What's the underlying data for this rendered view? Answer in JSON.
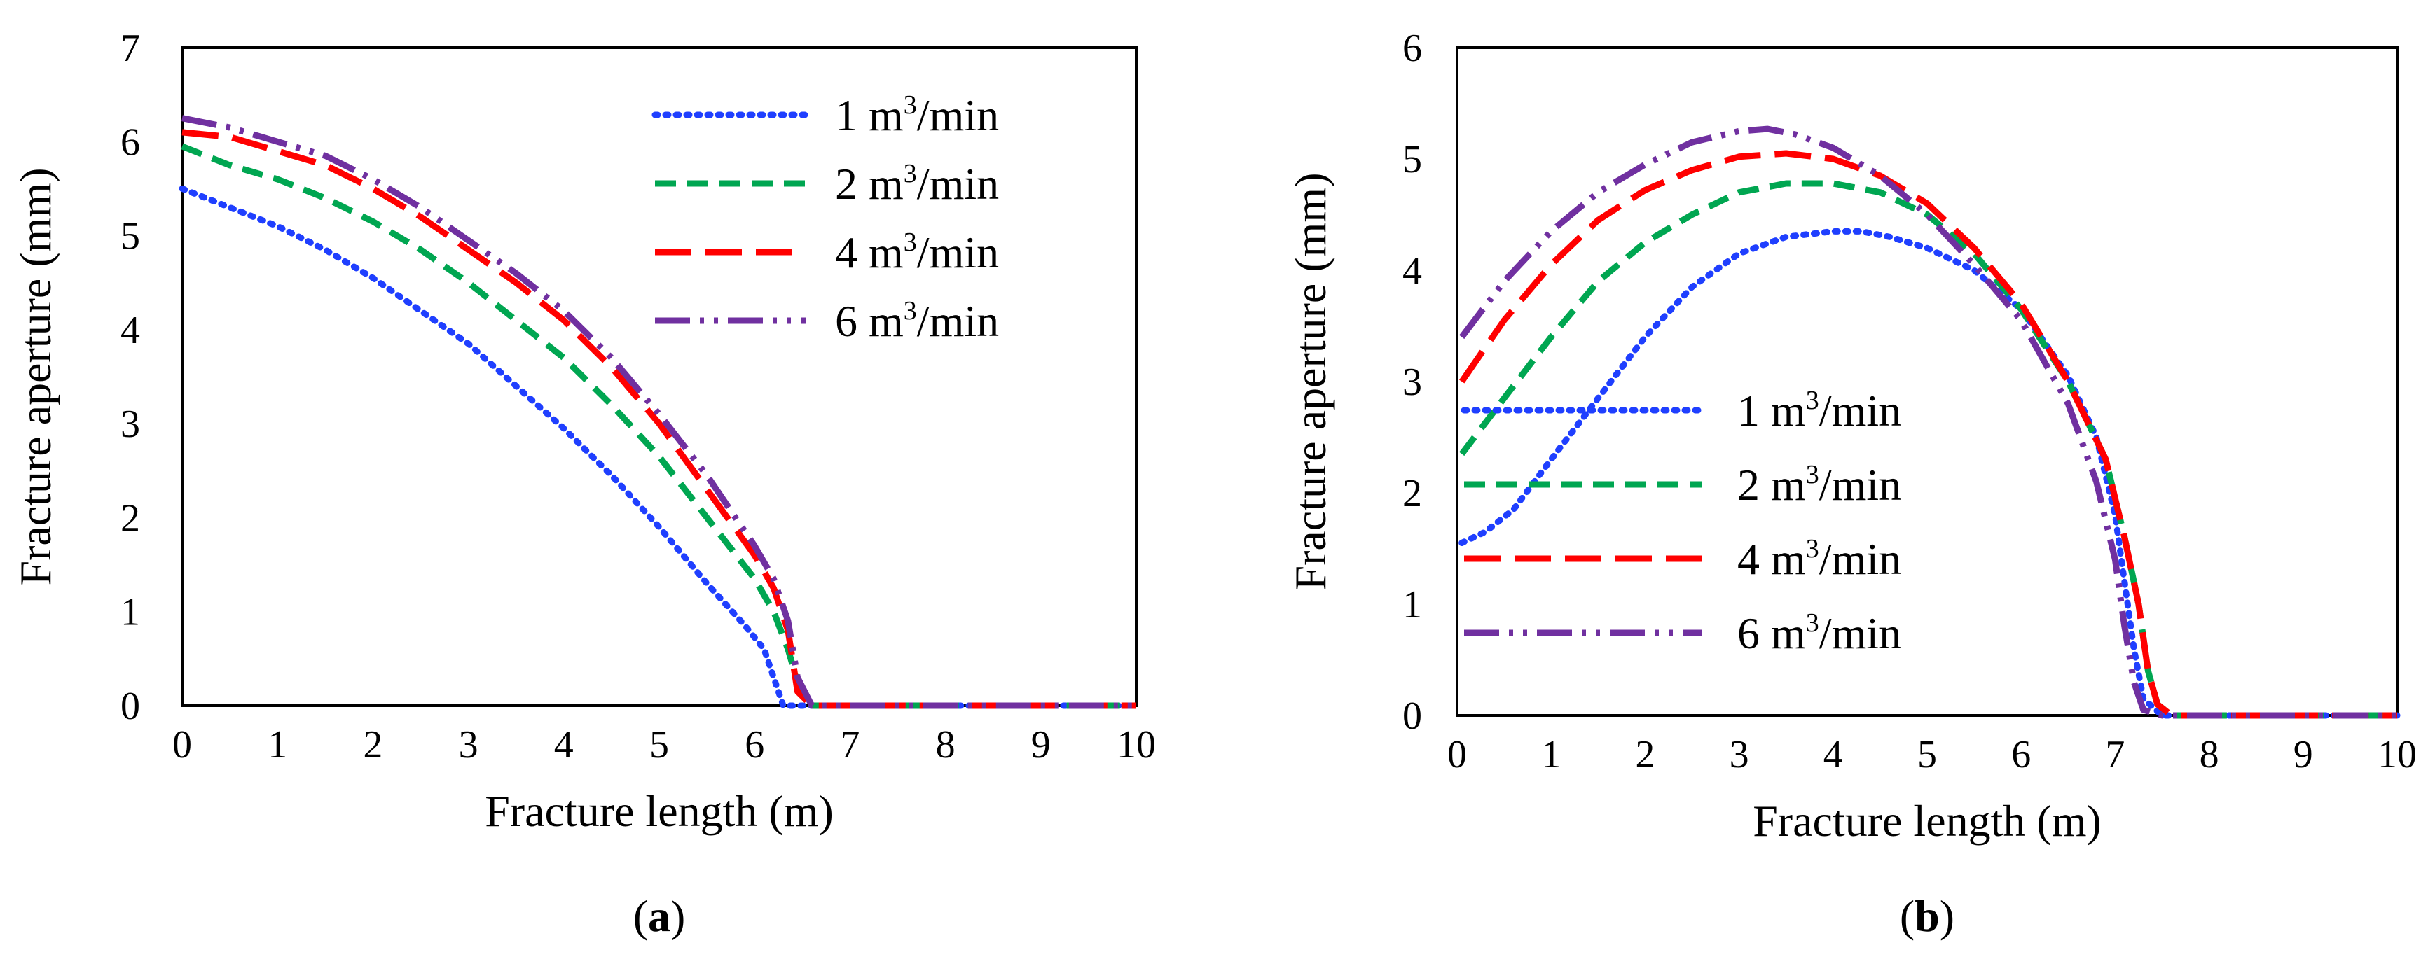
{
  "chart_data": [
    {
      "type": "line",
      "panel": "a",
      "caption_pre": "(",
      "caption_letter": "a",
      "caption_post": ")",
      "xlabel": "Fracture length (m)",
      "ylabel": "Fracture aperture (mm)",
      "xlim": [
        0,
        10
      ],
      "ylim": [
        0,
        7
      ],
      "xticks": [
        "0",
        "1",
        "2",
        "3",
        "4",
        "5",
        "6",
        "7",
        "8",
        "9",
        "10"
      ],
      "yticks": [
        "0",
        "1",
        "2",
        "3",
        "4",
        "5",
        "6",
        "7"
      ],
      "legend_position": "top-right",
      "series": [
        {
          "name": "1 m3/min",
          "label_pre": "1 m",
          "label_sup": "3",
          "label_post": "/min",
          "color": "#1f3fff",
          "dash": "dotted",
          "x": [
            0,
            0.5,
            1,
            1.5,
            2,
            2.5,
            3,
            3.5,
            4,
            4.5,
            5,
            5.5,
            5.9,
            6.1,
            6.2,
            6.3,
            6.5,
            7,
            8,
            9,
            10
          ],
          "y": [
            5.5,
            5.3,
            5.1,
            4.85,
            4.55,
            4.2,
            3.85,
            3.4,
            2.95,
            2.45,
            1.9,
            1.3,
            0.85,
            0.6,
            0.3,
            0.0,
            0.0,
            0.0,
            0.0,
            0.0,
            0.0
          ]
        },
        {
          "name": "2 m3/min",
          "label_pre": "2 m",
          "label_sup": "3",
          "label_post": "/min",
          "color": "#00a651",
          "dash": "dashed",
          "x": [
            0,
            0.5,
            1,
            1.5,
            2,
            2.5,
            3,
            3.5,
            4,
            4.5,
            5,
            5.5,
            6,
            6.2,
            6.35,
            6.45,
            6.6,
            7,
            8,
            9,
            10
          ],
          "y": [
            5.95,
            5.75,
            5.6,
            5.4,
            5.15,
            4.85,
            4.5,
            4.1,
            3.7,
            3.2,
            2.65,
            2.0,
            1.35,
            1.0,
            0.6,
            0.25,
            0.0,
            0.0,
            0.0,
            0.0,
            0.0
          ]
        },
        {
          "name": "4 m3/min",
          "label_pre": "4 m",
          "label_sup": "3",
          "label_post": "/min",
          "color": "#ff0000",
          "dash": "longdash",
          "x": [
            0,
            0.5,
            1,
            1.5,
            2,
            2.5,
            3,
            3.5,
            4,
            4.5,
            5,
            5.5,
            6,
            6.2,
            6.35,
            6.45,
            6.6,
            7,
            8,
            9,
            10
          ],
          "y": [
            6.1,
            6.05,
            5.9,
            5.75,
            5.5,
            5.2,
            4.85,
            4.5,
            4.1,
            3.6,
            3.0,
            2.3,
            1.6,
            1.25,
            0.8,
            0.15,
            0.0,
            0.0,
            0.0,
            0.0,
            0.0
          ]
        },
        {
          "name": "6 m3/min",
          "label_pre": "6 m",
          "label_sup": "3",
          "label_post": "/min",
          "color": "#7030a0",
          "dash": "dashdotdot",
          "x": [
            0,
            0.5,
            1,
            1.5,
            2,
            2.5,
            3,
            3.5,
            4,
            4.5,
            5,
            5.5,
            6,
            6.2,
            6.35,
            6.45,
            6.6,
            7,
            8,
            9,
            10
          ],
          "y": [
            6.25,
            6.15,
            6.0,
            5.85,
            5.6,
            5.3,
            4.95,
            4.6,
            4.2,
            3.7,
            3.1,
            2.45,
            1.7,
            1.35,
            0.9,
            0.3,
            0.0,
            0.0,
            0.0,
            0.0,
            0.0
          ]
        }
      ]
    },
    {
      "type": "line",
      "panel": "b",
      "caption_pre": "(",
      "caption_letter": "b",
      "caption_post": ")",
      "xlabel": "Fracture length (m)",
      "ylabel": "Fracture aperture (mm)",
      "xlim": [
        0,
        10
      ],
      "ylim": [
        0,
        6
      ],
      "xticks": [
        "0",
        "1",
        "2",
        "3",
        "4",
        "5",
        "6",
        "7",
        "8",
        "9",
        "10"
      ],
      "yticks": [
        "0",
        "1",
        "2",
        "3",
        "4",
        "5",
        "6"
      ],
      "legend_position": "center-left",
      "series": [
        {
          "name": "1 m3/min",
          "label_pre": "1 m",
          "label_sup": "3",
          "label_post": "/min",
          "color": "#1f3fff",
          "dash": "dotted",
          "x": [
            0.05,
            0.3,
            0.6,
            1,
            1.5,
            2,
            2.5,
            3,
            3.5,
            4,
            4.3,
            4.6,
            5,
            5.5,
            6,
            6.5,
            6.8,
            7,
            7.1,
            7.2,
            7.3,
            7.5,
            8,
            9,
            10
          ],
          "y": [
            1.55,
            1.65,
            1.85,
            2.3,
            2.85,
            3.4,
            3.85,
            4.15,
            4.3,
            4.35,
            4.35,
            4.3,
            4.2,
            4.0,
            3.65,
            3.05,
            2.5,
            1.8,
            1.2,
            0.6,
            0.15,
            0.0,
            0.0,
            0.0,
            0.0
          ]
        },
        {
          "name": "2 m3/min",
          "label_pre": "2 m",
          "label_sup": "3",
          "label_post": "/min",
          "color": "#00a651",
          "dash": "dashed",
          "x": [
            0.05,
            0.5,
            1,
            1.5,
            2,
            2.5,
            3,
            3.5,
            4,
            4.5,
            5,
            5.5,
            6,
            6.5,
            6.9,
            7.1,
            7.25,
            7.35,
            7.45,
            7.6,
            8,
            9,
            10
          ],
          "y": [
            2.35,
            2.85,
            3.4,
            3.9,
            4.25,
            4.5,
            4.7,
            4.78,
            4.78,
            4.7,
            4.5,
            4.15,
            3.65,
            3.0,
            2.3,
            1.6,
            1.0,
            0.4,
            0.1,
            0.0,
            0.0,
            0.0,
            0.0
          ]
        },
        {
          "name": "4 m3/min",
          "label_pre": "4 m",
          "label_sup": "3",
          "label_post": "/min",
          "color": "#ff0000",
          "dash": "longdash",
          "x": [
            0.05,
            0.5,
            1,
            1.5,
            2,
            2.5,
            3,
            3.5,
            4,
            4.5,
            5,
            5.5,
            6,
            6.5,
            6.9,
            7.1,
            7.25,
            7.35,
            7.45,
            7.6,
            8,
            9,
            10
          ],
          "y": [
            3.0,
            3.55,
            4.05,
            4.45,
            4.72,
            4.9,
            5.02,
            5.05,
            5.0,
            4.85,
            4.6,
            4.2,
            3.7,
            3.0,
            2.3,
            1.6,
            1.0,
            0.4,
            0.1,
            0.0,
            0.0,
            0.0,
            0.0
          ]
        },
        {
          "name": "6 m3/min",
          "label_pre": "6 m",
          "label_sup": "3",
          "label_post": "/min",
          "color": "#7030a0",
          "dash": "dashdotdot",
          "x": [
            0.05,
            0.5,
            1,
            1.5,
            2,
            2.5,
            3,
            3.3,
            3.6,
            4,
            4.5,
            5,
            5.5,
            6,
            6.5,
            6.8,
            7,
            7.1,
            7.2,
            7.3,
            7.5,
            8,
            9,
            10
          ],
          "y": [
            3.4,
            3.9,
            4.35,
            4.7,
            4.95,
            5.15,
            5.25,
            5.27,
            5.22,
            5.1,
            4.85,
            4.5,
            4.05,
            3.55,
            2.8,
            2.1,
            1.4,
            0.8,
            0.3,
            0.05,
            0.0,
            0.0,
            0.0,
            0.0
          ]
        }
      ]
    }
  ]
}
